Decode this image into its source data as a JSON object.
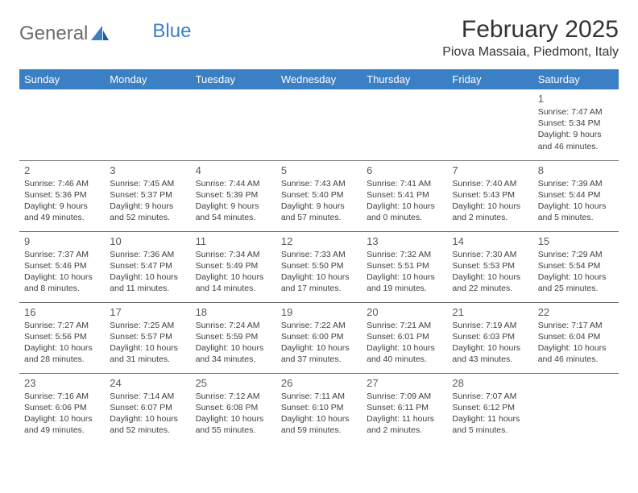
{
  "logo": {
    "text1": "General",
    "text2": "Blue"
  },
  "title": "February 2025",
  "location": "Piova Massaia, Piedmont, Italy",
  "colors": {
    "header_bg": "#3b7fc4",
    "header_text": "#ffffff",
    "border": "#6b6b6b",
    "daynum": "#5a5a5a",
    "text": "#404040"
  },
  "weekdays": [
    "Sunday",
    "Monday",
    "Tuesday",
    "Wednesday",
    "Thursday",
    "Friday",
    "Saturday"
  ],
  "weeks": [
    [
      null,
      null,
      null,
      null,
      null,
      null,
      {
        "n": "1",
        "sunrise": "Sunrise: 7:47 AM",
        "sunset": "Sunset: 5:34 PM",
        "daylight": "Daylight: 9 hours and 46 minutes."
      }
    ],
    [
      {
        "n": "2",
        "sunrise": "Sunrise: 7:46 AM",
        "sunset": "Sunset: 5:36 PM",
        "daylight": "Daylight: 9 hours and 49 minutes."
      },
      {
        "n": "3",
        "sunrise": "Sunrise: 7:45 AM",
        "sunset": "Sunset: 5:37 PM",
        "daylight": "Daylight: 9 hours and 52 minutes."
      },
      {
        "n": "4",
        "sunrise": "Sunrise: 7:44 AM",
        "sunset": "Sunset: 5:39 PM",
        "daylight": "Daylight: 9 hours and 54 minutes."
      },
      {
        "n": "5",
        "sunrise": "Sunrise: 7:43 AM",
        "sunset": "Sunset: 5:40 PM",
        "daylight": "Daylight: 9 hours and 57 minutes."
      },
      {
        "n": "6",
        "sunrise": "Sunrise: 7:41 AM",
        "sunset": "Sunset: 5:41 PM",
        "daylight": "Daylight: 10 hours and 0 minutes."
      },
      {
        "n": "7",
        "sunrise": "Sunrise: 7:40 AM",
        "sunset": "Sunset: 5:43 PM",
        "daylight": "Daylight: 10 hours and 2 minutes."
      },
      {
        "n": "8",
        "sunrise": "Sunrise: 7:39 AM",
        "sunset": "Sunset: 5:44 PM",
        "daylight": "Daylight: 10 hours and 5 minutes."
      }
    ],
    [
      {
        "n": "9",
        "sunrise": "Sunrise: 7:37 AM",
        "sunset": "Sunset: 5:46 PM",
        "daylight": "Daylight: 10 hours and 8 minutes."
      },
      {
        "n": "10",
        "sunrise": "Sunrise: 7:36 AM",
        "sunset": "Sunset: 5:47 PM",
        "daylight": "Daylight: 10 hours and 11 minutes."
      },
      {
        "n": "11",
        "sunrise": "Sunrise: 7:34 AM",
        "sunset": "Sunset: 5:49 PM",
        "daylight": "Daylight: 10 hours and 14 minutes."
      },
      {
        "n": "12",
        "sunrise": "Sunrise: 7:33 AM",
        "sunset": "Sunset: 5:50 PM",
        "daylight": "Daylight: 10 hours and 17 minutes."
      },
      {
        "n": "13",
        "sunrise": "Sunrise: 7:32 AM",
        "sunset": "Sunset: 5:51 PM",
        "daylight": "Daylight: 10 hours and 19 minutes."
      },
      {
        "n": "14",
        "sunrise": "Sunrise: 7:30 AM",
        "sunset": "Sunset: 5:53 PM",
        "daylight": "Daylight: 10 hours and 22 minutes."
      },
      {
        "n": "15",
        "sunrise": "Sunrise: 7:29 AM",
        "sunset": "Sunset: 5:54 PM",
        "daylight": "Daylight: 10 hours and 25 minutes."
      }
    ],
    [
      {
        "n": "16",
        "sunrise": "Sunrise: 7:27 AM",
        "sunset": "Sunset: 5:56 PM",
        "daylight": "Daylight: 10 hours and 28 minutes."
      },
      {
        "n": "17",
        "sunrise": "Sunrise: 7:25 AM",
        "sunset": "Sunset: 5:57 PM",
        "daylight": "Daylight: 10 hours and 31 minutes."
      },
      {
        "n": "18",
        "sunrise": "Sunrise: 7:24 AM",
        "sunset": "Sunset: 5:59 PM",
        "daylight": "Daylight: 10 hours and 34 minutes."
      },
      {
        "n": "19",
        "sunrise": "Sunrise: 7:22 AM",
        "sunset": "Sunset: 6:00 PM",
        "daylight": "Daylight: 10 hours and 37 minutes."
      },
      {
        "n": "20",
        "sunrise": "Sunrise: 7:21 AM",
        "sunset": "Sunset: 6:01 PM",
        "daylight": "Daylight: 10 hours and 40 minutes."
      },
      {
        "n": "21",
        "sunrise": "Sunrise: 7:19 AM",
        "sunset": "Sunset: 6:03 PM",
        "daylight": "Daylight: 10 hours and 43 minutes."
      },
      {
        "n": "22",
        "sunrise": "Sunrise: 7:17 AM",
        "sunset": "Sunset: 6:04 PM",
        "daylight": "Daylight: 10 hours and 46 minutes."
      }
    ],
    [
      {
        "n": "23",
        "sunrise": "Sunrise: 7:16 AM",
        "sunset": "Sunset: 6:06 PM",
        "daylight": "Daylight: 10 hours and 49 minutes."
      },
      {
        "n": "24",
        "sunrise": "Sunrise: 7:14 AM",
        "sunset": "Sunset: 6:07 PM",
        "daylight": "Daylight: 10 hours and 52 minutes."
      },
      {
        "n": "25",
        "sunrise": "Sunrise: 7:12 AM",
        "sunset": "Sunset: 6:08 PM",
        "daylight": "Daylight: 10 hours and 55 minutes."
      },
      {
        "n": "26",
        "sunrise": "Sunrise: 7:11 AM",
        "sunset": "Sunset: 6:10 PM",
        "daylight": "Daylight: 10 hours and 59 minutes."
      },
      {
        "n": "27",
        "sunrise": "Sunrise: 7:09 AM",
        "sunset": "Sunset: 6:11 PM",
        "daylight": "Daylight: 11 hours and 2 minutes."
      },
      {
        "n": "28",
        "sunrise": "Sunrise: 7:07 AM",
        "sunset": "Sunset: 6:12 PM",
        "daylight": "Daylight: 11 hours and 5 minutes."
      },
      null
    ]
  ]
}
